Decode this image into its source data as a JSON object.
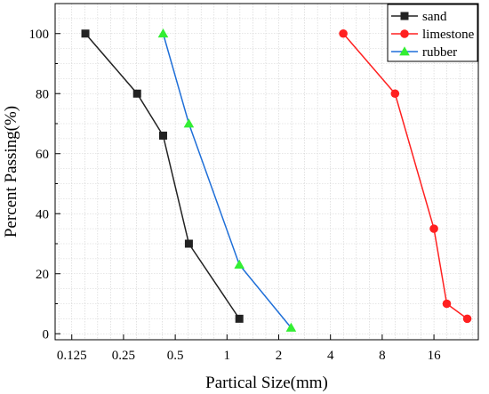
{
  "chart_data": {
    "type": "line",
    "title": "",
    "xlabel": "Partical Size(mm)",
    "ylabel": "Percent Passing(%)",
    "x_scale": "log2",
    "xlim": [
      0.1,
      29
    ],
    "ylim": [
      -2,
      110
    ],
    "x_ticks": [
      0.125,
      0.25,
      0.5,
      1,
      2,
      4,
      8,
      16
    ],
    "x_tick_labels": [
      "0.125",
      "0.25",
      "0.5",
      "1",
      "2",
      "4",
      "8",
      "16"
    ],
    "y_ticks": [
      0,
      20,
      40,
      60,
      80,
      100
    ],
    "y_tick_labels": [
      "0",
      "20",
      "40",
      "60",
      "80",
      "100"
    ],
    "grid": true,
    "legend_position": "top-right",
    "series": [
      {
        "name": "sand",
        "color": "#222222",
        "marker": "square",
        "x": [
          0.15,
          0.3,
          0.425,
          0.6,
          1.18
        ],
        "y": [
          100,
          80,
          66,
          30,
          5
        ]
      },
      {
        "name": "limestone",
        "color": "#ff2020",
        "marker": "circle",
        "x": [
          4.75,
          9.5,
          16,
          19,
          25
        ],
        "y": [
          100,
          80,
          35,
          10,
          5
        ]
      },
      {
        "name": "rubber",
        "color": "#1f6fd8",
        "marker_color": "#33ee33",
        "marker": "triangle",
        "x": [
          0.425,
          0.6,
          1.18,
          2.36
        ],
        "y": [
          100,
          70,
          23,
          2
        ]
      }
    ]
  }
}
